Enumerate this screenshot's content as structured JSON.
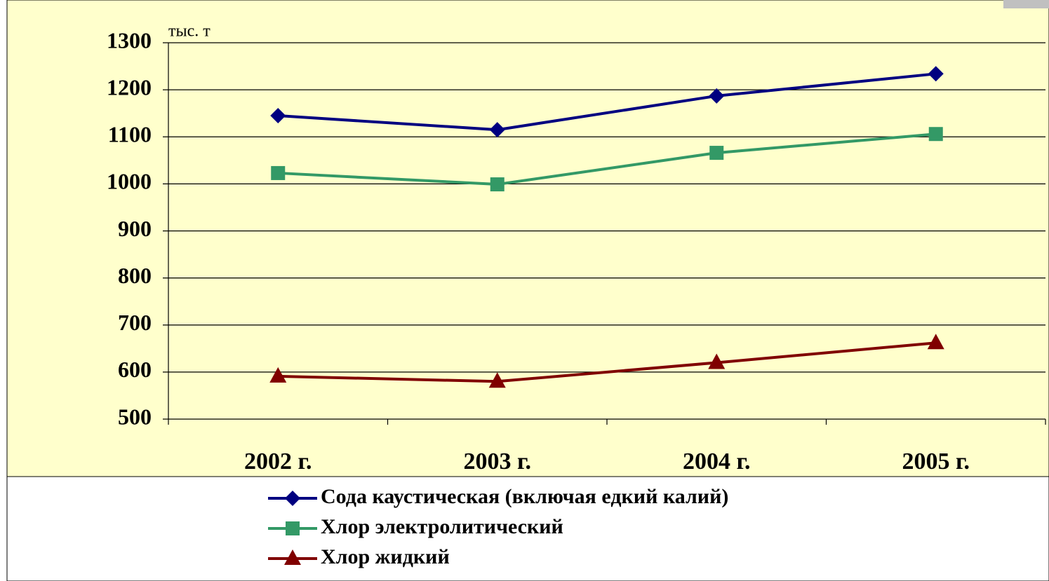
{
  "chart_data": {
    "type": "line",
    "unit_label": "тыс. т",
    "categories": [
      "2002 г.",
      "2003 г.",
      "2004 г.",
      "2005 г."
    ],
    "series": [
      {
        "name": "Сода каустическая (включая едкий калий)",
        "color": "#000080",
        "marker": "diamond",
        "values": [
          1145,
          1115,
          1187,
          1234
        ]
      },
      {
        "name": "Хлор электролитический",
        "color": "#339966",
        "marker": "square",
        "values": [
          1023,
          999,
          1066,
          1106
        ]
      },
      {
        "name": "Хлор жидкий",
        "color": "#800000",
        "marker": "triangle",
        "values": [
          591,
          580,
          620,
          662
        ]
      }
    ],
    "ylim": [
      500,
      1300
    ],
    "yticks": [
      500,
      600,
      700,
      800,
      900,
      1000,
      1100,
      1200,
      1300
    ],
    "grid": true,
    "legend": "bottom"
  }
}
